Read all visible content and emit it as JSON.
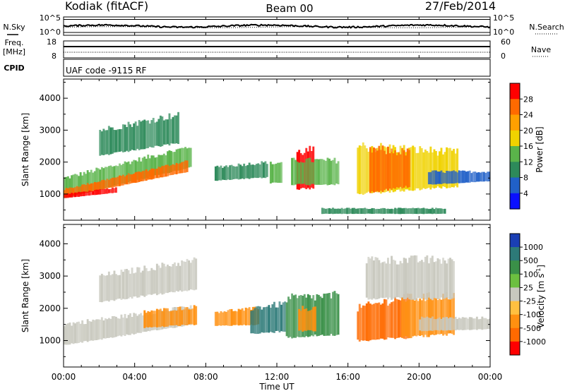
{
  "header": {
    "title": "Kodiak (fitACF)",
    "beam": "Beam 00",
    "date": "27/Feb/2014"
  },
  "noise_panel": {
    "left_label": "N.Sky",
    "right_label": "N.Search",
    "ticks": [
      "10^5",
      "10^0"
    ]
  },
  "freq_panel": {
    "left_label_line1": "Freq.",
    "left_label_line2": "[MHz]",
    "left_ticks": [
      "18",
      "8"
    ],
    "right_label": "Nave",
    "right_ticks": [
      "60",
      "0"
    ]
  },
  "cpid_panel": {
    "label": "CPID",
    "text": "UAF code -9115 RF"
  },
  "chart_data": [
    {
      "type": "heatmap",
      "ylabel": "Slant Range [km]",
      "xlabel": "Time UT",
      "x_ticks": [
        "00:00",
        "04:00",
        "08:00",
        "12:00",
        "16:00",
        "20:00",
        "00:00"
      ],
      "x_range_hours": [
        0,
        24
      ],
      "y_ticks": [
        "1000",
        "2000",
        "3000",
        "4000"
      ],
      "y_tick_values": [
        1000,
        2000,
        3000,
        4000
      ],
      "ylim": [
        180,
        4600
      ],
      "colorbar": {
        "title": "Power [dB]",
        "labels": [
          "28",
          "24",
          "20",
          "16",
          "12",
          "8",
          "4"
        ],
        "colors": [
          "#ff0000",
          "#ff6a00",
          "#ffa000",
          "#f0d200",
          "#5ab44a",
          "#2d8a5a",
          "#2060c8",
          "#0a10ff"
        ]
      },
      "features": [
        {
          "t0": 0.0,
          "t1": 7.2,
          "r0_start": 880,
          "r0_end": 1850,
          "r1_start": 1500,
          "r1_end": 2500,
          "level": 4
        },
        {
          "t0": 0.0,
          "t1": 7.0,
          "r0_start": 900,
          "r0_end": 1700,
          "r1_start": 1150,
          "r1_end": 2050,
          "level": 1
        },
        {
          "t0": 0.0,
          "t1": 3.0,
          "r0_start": 870,
          "r0_end": 1050,
          "r1_start": 1000,
          "r1_end": 1200,
          "level": 0
        },
        {
          "t0": 8.5,
          "t1": 11.5,
          "r0_start": 1420,
          "r0_end": 1520,
          "r1_start": 1850,
          "r1_end": 2000,
          "level": 5
        },
        {
          "t0": 11.6,
          "t1": 12.3,
          "r0_start": 1350,
          "r0_end": 1350,
          "r1_start": 1950,
          "r1_end": 2000,
          "level": 4
        },
        {
          "t0": 13.1,
          "t1": 14.1,
          "r0_start": 1150,
          "r0_end": 1200,
          "r1_start": 2300,
          "r1_end": 2400,
          "level": 0
        },
        {
          "t0": 12.8,
          "t1": 15.5,
          "r0_start": 1300,
          "r0_end": 1300,
          "r1_start": 2050,
          "r1_end": 2050,
          "level": 4
        },
        {
          "t0": 16.5,
          "t1": 22.2,
          "r0_start": 1000,
          "r0_end": 1250,
          "r1_start": 2500,
          "r1_end": 2300,
          "level": 3
        },
        {
          "t0": 17.2,
          "t1": 19.5,
          "r0_start": 1050,
          "r0_end": 1250,
          "r1_start": 2400,
          "r1_end": 2300,
          "level": 1
        },
        {
          "t0": 20.5,
          "t1": 24.0,
          "r0_start": 1300,
          "r0_end": 1400,
          "r1_start": 1700,
          "r1_end": 1700,
          "level": 6
        },
        {
          "t0": 2.0,
          "t1": 6.5,
          "r0_start": 2200,
          "r0_end": 2600,
          "r1_start": 3000,
          "r1_end": 3500,
          "level": 5
        },
        {
          "t0": 14.5,
          "t1": 21.5,
          "r0_start": 380,
          "r0_end": 380,
          "r1_start": 550,
          "r1_end": 550,
          "level": 5
        }
      ]
    },
    {
      "type": "heatmap",
      "ylabel": "Slant Range [km]",
      "xlabel": "Time UT",
      "x_ticks": [
        "00:00",
        "04:00",
        "08:00",
        "12:00",
        "16:00",
        "20:00",
        "00:00"
      ],
      "x_range_hours": [
        0,
        24
      ],
      "y_ticks": [
        "1000",
        "2000",
        "3000",
        "4000"
      ],
      "y_tick_values": [
        1000,
        2000,
        3000,
        4000
      ],
      "ylim": [
        180,
        4600
      ],
      "colorbar": {
        "title_main": "Velocity [m s",
        "title_exponent": "-1",
        "title_close": "]",
        "labels": [
          "1000",
          "500",
          "100",
          "25",
          "-25",
          "-100",
          "-500",
          "-1000"
        ],
        "colors": [
          "#1a3fb4",
          "#2d7a78",
          "#3a9048",
          "#6cc040",
          "#c8c8be",
          "#ffc040",
          "#ff9010",
          "#ff6a00",
          "#ff0000"
        ]
      },
      "features": [
        {
          "t0": 0.0,
          "t1": 7.2,
          "r0_start": 860,
          "r0_end": 1500,
          "r1_start": 1500,
          "r1_end": 2050,
          "level": 4
        },
        {
          "t0": 2.0,
          "t1": 7.5,
          "r0_start": 2200,
          "r0_end": 2600,
          "r1_start": 3000,
          "r1_end": 3500,
          "level": 4
        },
        {
          "t0": 4.5,
          "t1": 7.5,
          "r0_start": 1400,
          "r0_end": 1500,
          "r1_start": 1900,
          "r1_end": 2050,
          "level": 6
        },
        {
          "t0": 8.5,
          "t1": 11.0,
          "r0_start": 1450,
          "r0_end": 1500,
          "r1_start": 1900,
          "r1_end": 2000,
          "level": 6
        },
        {
          "t0": 10.5,
          "t1": 12.5,
          "r0_start": 1200,
          "r0_end": 1300,
          "r1_start": 2000,
          "r1_end": 2150,
          "level": 1
        },
        {
          "t0": 12.5,
          "t1": 15.5,
          "r0_start": 1100,
          "r0_end": 1200,
          "r1_start": 2300,
          "r1_end": 2400,
          "level": 2
        },
        {
          "t0": 13.2,
          "t1": 14.2,
          "r0_start": 1300,
          "r0_end": 1300,
          "r1_start": 2000,
          "r1_end": 2000,
          "level": 6
        },
        {
          "t0": 16.5,
          "t1": 19.5,
          "r0_start": 1000,
          "r0_end": 1100,
          "r1_start": 2000,
          "r1_end": 2400,
          "level": 7
        },
        {
          "t0": 19.0,
          "t1": 22.0,
          "r0_start": 1100,
          "r0_end": 1200,
          "r1_start": 2300,
          "r1_end": 2400,
          "level": 6
        },
        {
          "t0": 20.0,
          "t1": 24.0,
          "r0_start": 1300,
          "r0_end": 1350,
          "r1_start": 1700,
          "r1_end": 1700,
          "level": 4
        },
        {
          "t0": 17.0,
          "t1": 22.0,
          "r0_start": 2300,
          "r0_end": 2300,
          "r1_start": 3500,
          "r1_end": 3500,
          "level": 4
        }
      ]
    }
  ]
}
